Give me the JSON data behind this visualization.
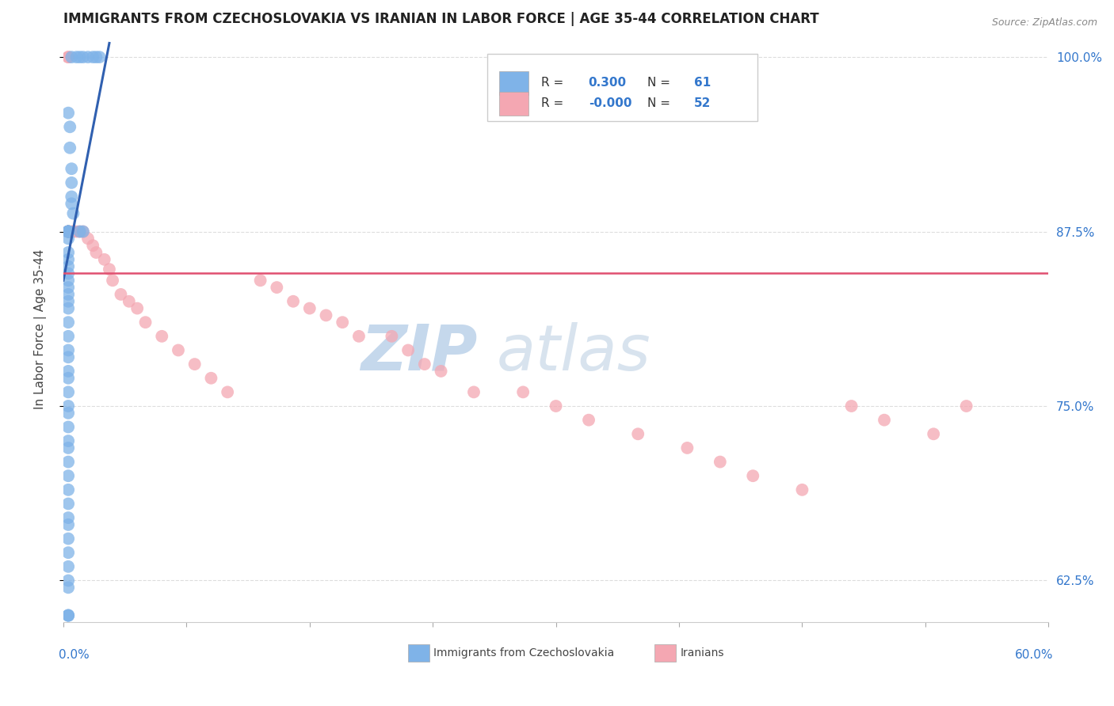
{
  "title": "IMMIGRANTS FROM CZECHOSLOVAKIA VS IRANIAN IN LABOR FORCE | AGE 35-44 CORRELATION CHART",
  "source_text": "Source: ZipAtlas.com",
  "ylabel": "In Labor Force | Age 35-44",
  "xlim": [
    0.0,
    0.6
  ],
  "ylim": [
    0.595,
    1.015
  ],
  "blue_color": "#7FB3E8",
  "pink_color": "#F4A7B2",
  "blue_line_color": "#3060B0",
  "pink_line_color": "#E05070",
  "legend_r_czech": "0.300",
  "legend_n_czech": "61",
  "legend_r_iran": "-0.000",
  "legend_n_iran": "52",
  "czech_x": [
    0.005,
    0.008,
    0.01,
    0.012,
    0.015,
    0.018,
    0.02,
    0.022,
    0.003,
    0.004,
    0.004,
    0.005,
    0.005,
    0.005,
    0.005,
    0.006,
    0.003,
    0.003,
    0.003,
    0.003,
    0.003,
    0.003,
    0.003,
    0.003,
    0.003,
    0.003,
    0.003,
    0.003,
    0.003,
    0.003,
    0.003,
    0.003,
    0.003,
    0.003,
    0.003,
    0.003,
    0.003,
    0.003,
    0.003,
    0.003,
    0.003,
    0.003,
    0.003,
    0.003,
    0.003,
    0.003,
    0.003,
    0.003,
    0.003,
    0.003,
    0.003,
    0.003,
    0.003,
    0.003,
    0.003,
    0.003,
    0.01,
    0.012,
    0.003,
    0.003,
    0.003
  ],
  "czech_y": [
    1.0,
    1.0,
    1.0,
    1.0,
    1.0,
    1.0,
    1.0,
    1.0,
    0.96,
    0.95,
    0.935,
    0.92,
    0.91,
    0.9,
    0.895,
    0.888,
    0.875,
    0.875,
    0.875,
    0.875,
    0.875,
    0.875,
    0.875,
    0.87,
    0.86,
    0.855,
    0.85,
    0.845,
    0.84,
    0.835,
    0.83,
    0.825,
    0.82,
    0.81,
    0.8,
    0.79,
    0.785,
    0.775,
    0.77,
    0.76,
    0.75,
    0.745,
    0.735,
    0.725,
    0.72,
    0.71,
    0.7,
    0.69,
    0.68,
    0.67,
    0.665,
    0.655,
    0.645,
    0.635,
    0.625,
    0.62,
    0.875,
    0.875,
    0.6,
    0.6,
    0.6
  ],
  "iran_x": [
    0.003,
    0.003,
    0.003,
    0.003,
    0.003,
    0.003,
    0.003,
    0.003,
    0.005,
    0.006,
    0.008,
    0.01,
    0.012,
    0.015,
    0.018,
    0.02,
    0.025,
    0.028,
    0.03,
    0.035,
    0.04,
    0.045,
    0.05,
    0.06,
    0.07,
    0.08,
    0.09,
    0.1,
    0.12,
    0.13,
    0.14,
    0.15,
    0.16,
    0.17,
    0.18,
    0.2,
    0.21,
    0.22,
    0.23,
    0.25,
    0.28,
    0.3,
    0.32,
    0.35,
    0.38,
    0.4,
    0.42,
    0.45,
    0.48,
    0.5,
    0.53,
    0.55
  ],
  "iran_y": [
    1.0,
    1.0,
    0.875,
    0.875,
    0.875,
    0.875,
    0.875,
    0.875,
    0.875,
    0.875,
    0.875,
    0.875,
    0.875,
    0.87,
    0.865,
    0.86,
    0.855,
    0.848,
    0.84,
    0.83,
    0.825,
    0.82,
    0.81,
    0.8,
    0.79,
    0.78,
    0.77,
    0.76,
    0.84,
    0.835,
    0.825,
    0.82,
    0.815,
    0.81,
    0.8,
    0.8,
    0.79,
    0.78,
    0.775,
    0.76,
    0.76,
    0.75,
    0.74,
    0.73,
    0.72,
    0.71,
    0.7,
    0.69,
    0.75,
    0.74,
    0.73,
    0.75
  ],
  "blue_trend_x": [
    0.0,
    0.028
  ],
  "blue_trend_y": [
    0.84,
    1.01
  ],
  "pink_trend_y": 0.845
}
